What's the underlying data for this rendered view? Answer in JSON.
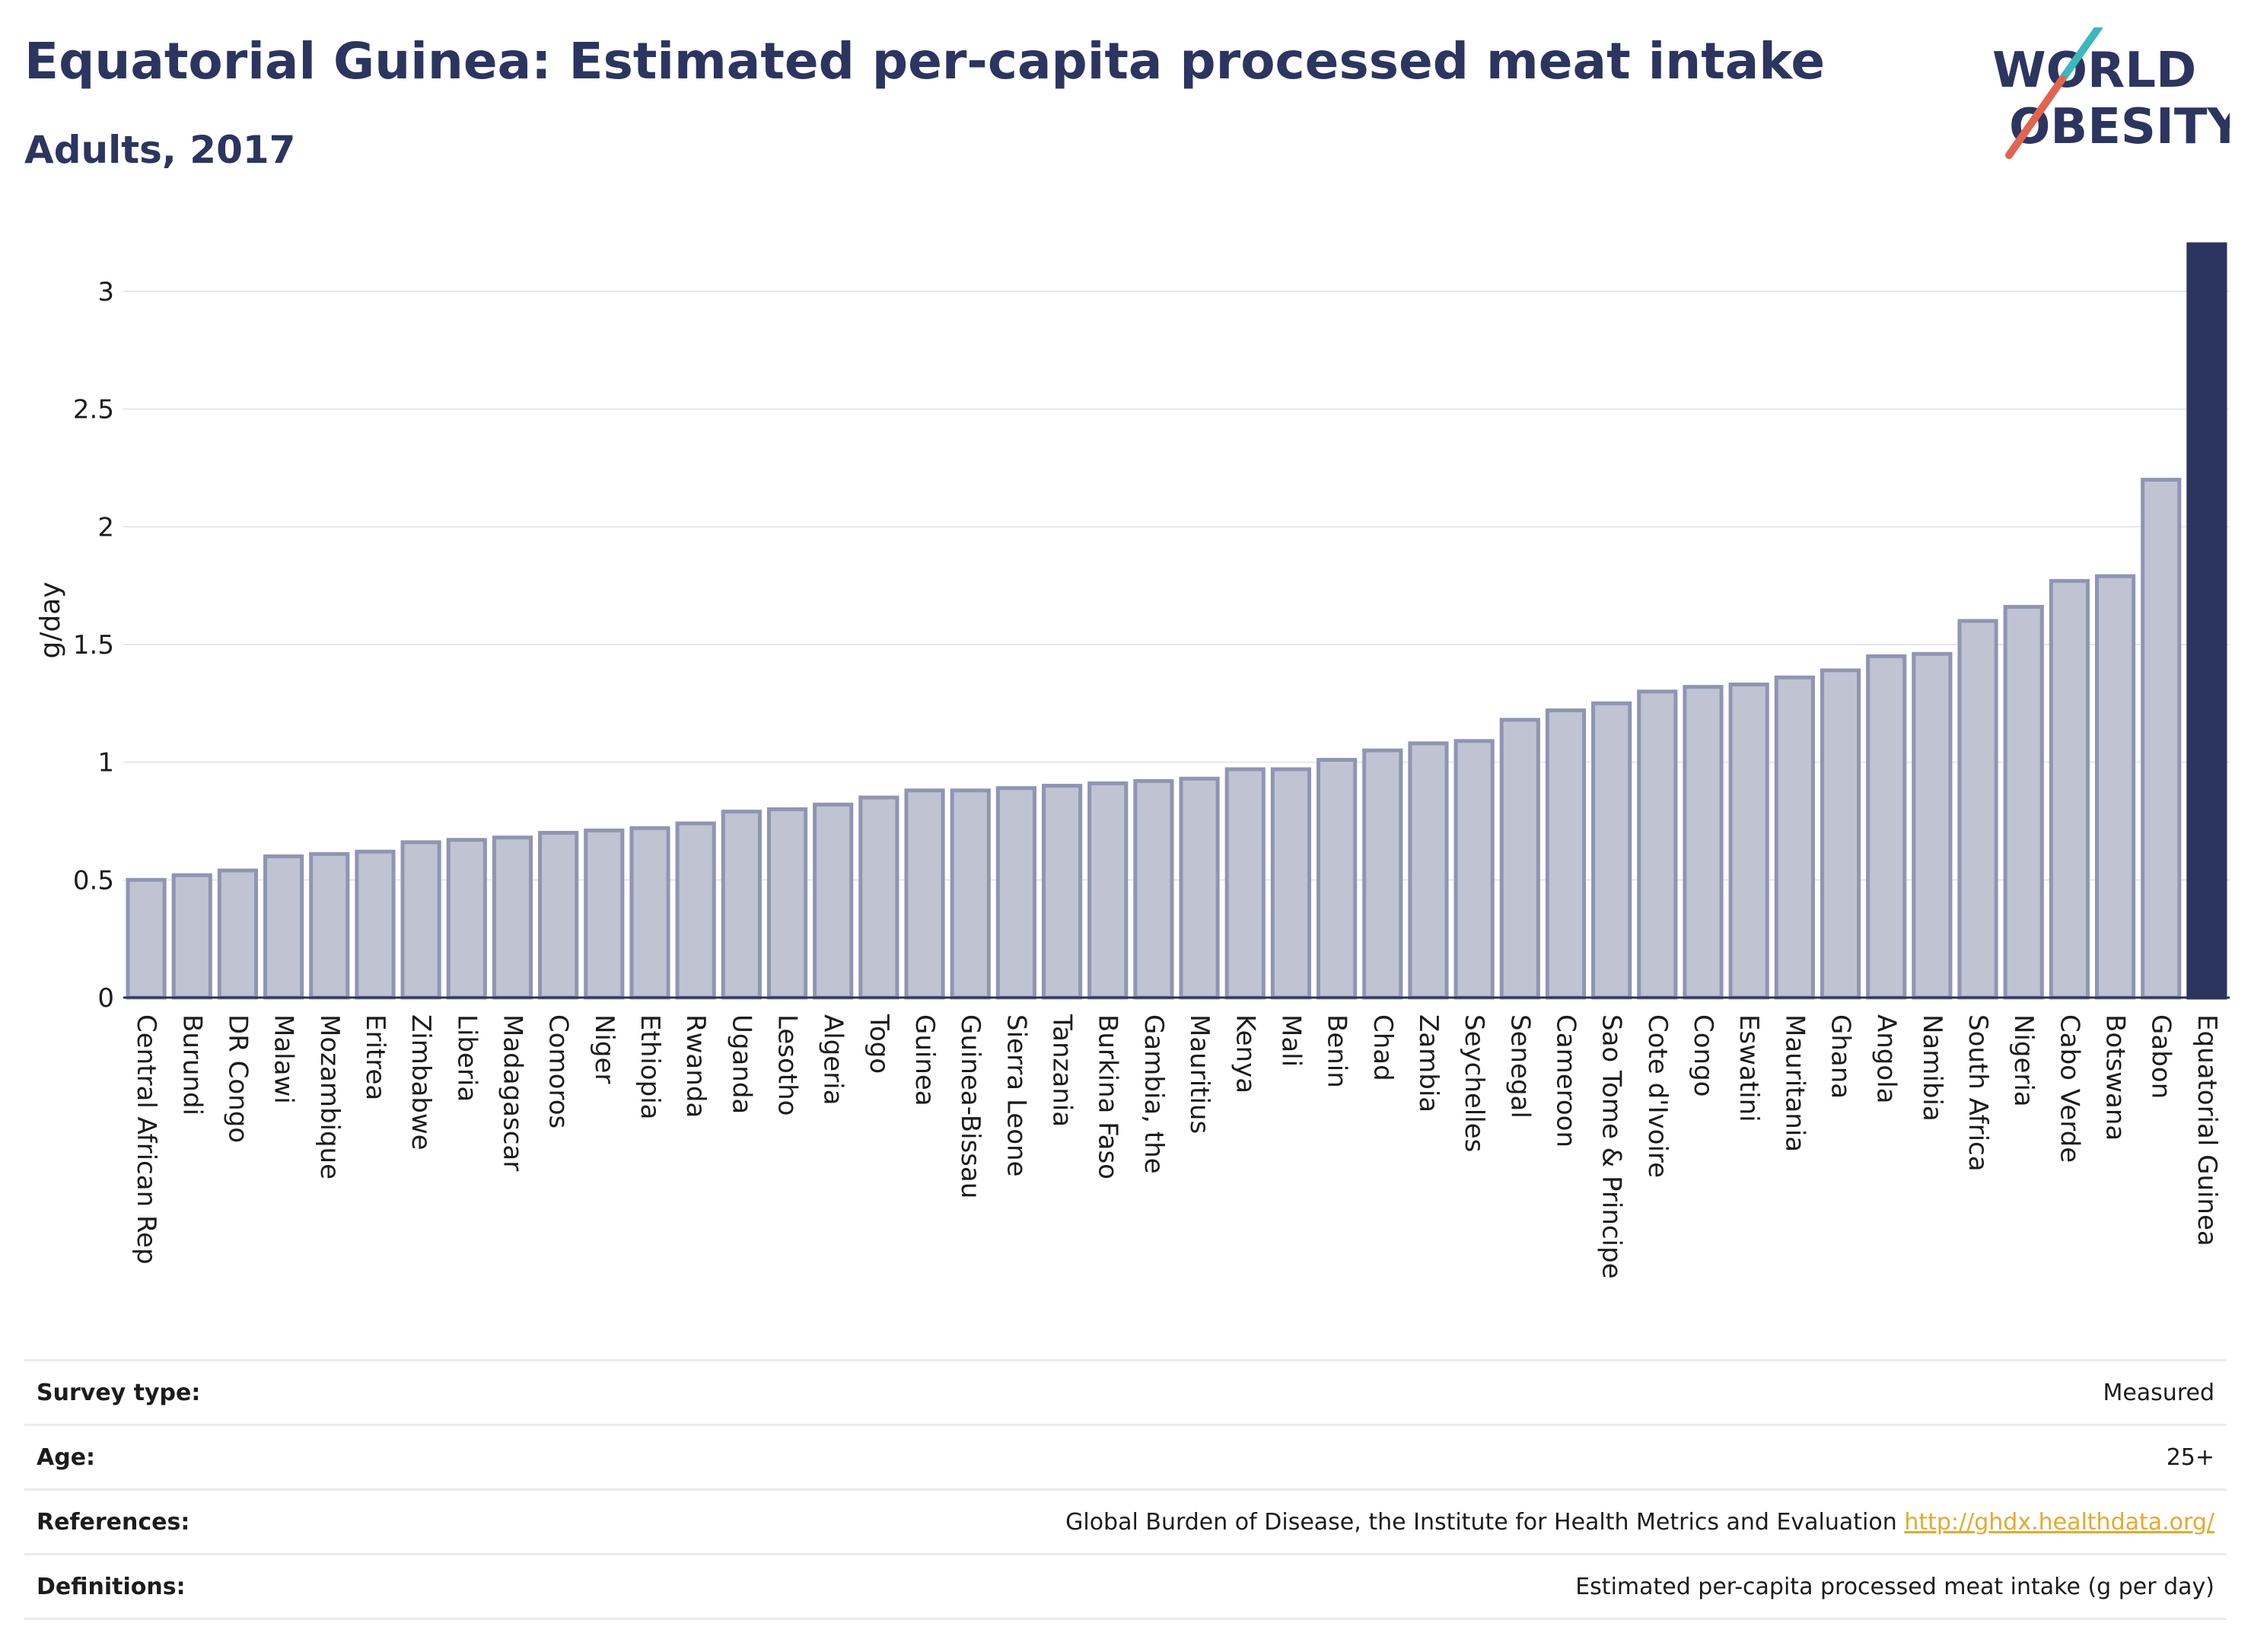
{
  "header": {
    "title": "Equatorial Guinea: Estimated per-capita processed meat intake",
    "subtitle": "Adults, 2017"
  },
  "logo": {
    "line1": "WORLD",
    "line2": "OBESITY",
    "colors": {
      "text": "#2c3560",
      "teal": "#3bb8bd",
      "coral": "#e2644f"
    }
  },
  "colors": {
    "bar": "#c0c3d2",
    "bar_border": "#8f95b2",
    "highlight": "#2c3560",
    "grid": "#e5e7ee",
    "axis": "#2c3560"
  },
  "chart_data": {
    "type": "bar",
    "ylabel": "g/day",
    "ylim": [
      0,
      3.2
    ],
    "yticks": [
      0,
      0.5,
      1,
      1.5,
      2,
      2.5,
      3
    ],
    "grid": true,
    "highlight": "Equatorial Guinea",
    "categories": [
      "Central African Rep",
      "Burundi",
      "DR Congo",
      "Malawi",
      "Mozambique",
      "Eritrea",
      "Zimbabwe",
      "Liberia",
      "Madagascar",
      "Comoros",
      "Niger",
      "Ethiopia",
      "Rwanda",
      "Uganda",
      "Lesotho",
      "Algeria",
      "Togo",
      "Guinea",
      "Guinea-Bissau",
      "Sierra Leone",
      "Tanzania",
      "Burkina Faso",
      "Gambia, the",
      "Mauritius",
      "Kenya",
      "Mali",
      "Benin",
      "Chad",
      "Zambia",
      "Seychelles",
      "Senegal",
      "Cameroon",
      "Sao Tome & Principe",
      "Cote d'Ivoire",
      "Congo",
      "Eswatini",
      "Mauritania",
      "Ghana",
      "Angola",
      "Namibia",
      "South Africa",
      "Nigeria",
      "Cabo Verde",
      "Botswana",
      "Gabon",
      "Equatorial Guinea"
    ],
    "values": [
      0.5,
      0.52,
      0.54,
      0.6,
      0.61,
      0.62,
      0.66,
      0.67,
      0.68,
      0.7,
      0.71,
      0.72,
      0.74,
      0.79,
      0.8,
      0.82,
      0.85,
      0.88,
      0.88,
      0.89,
      0.9,
      0.91,
      0.92,
      0.93,
      0.97,
      0.97,
      1.01,
      1.05,
      1.08,
      1.09,
      1.18,
      1.22,
      1.25,
      1.3,
      1.32,
      1.33,
      1.36,
      1.39,
      1.45,
      1.46,
      1.6,
      1.66,
      1.77,
      1.79,
      2.2,
      3.2
    ]
  },
  "meta": [
    {
      "label": "Survey type:",
      "value": "Measured"
    },
    {
      "label": "Age:",
      "value": "25+"
    },
    {
      "label": "References:",
      "value": "Global Burden of Disease, the Institute for Health Metrics and Evaluation",
      "link": "http://ghdx.healthdata.org/"
    },
    {
      "label": "Definitions:",
      "value": "Estimated per-capita processed meat intake (g per day)"
    }
  ]
}
